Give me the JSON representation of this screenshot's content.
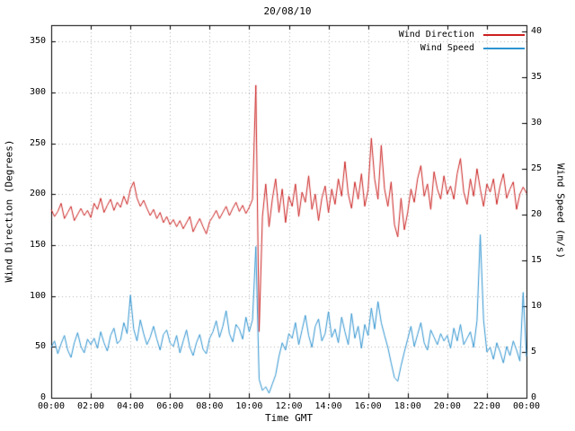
{
  "chart_data": {
    "type": "line",
    "title": "20/08/10",
    "xlabel": "Time GMT",
    "ylabel_left": "Wind Direction (Degrees)",
    "ylabel_right": "Wind Speed (m/s)",
    "grid": true,
    "legend_position": "top-right",
    "x_tick_labels": [
      "00:00",
      "02:00",
      "04:00",
      "06:00",
      "08:00",
      "10:00",
      "12:00",
      "14:00",
      "16:00",
      "18:00",
      "20:00",
      "22:00",
      "00:00"
    ],
    "x_range_minutes": [
      0,
      1440
    ],
    "y_left": {
      "range": [
        0,
        366
      ],
      "ticks": [
        0,
        50,
        100,
        150,
        200,
        250,
        300,
        350
      ]
    },
    "y_right": {
      "range": [
        0,
        40.67
      ],
      "ticks": [
        0,
        5,
        10,
        15,
        20,
        25,
        30,
        35,
        40
      ]
    },
    "colors": {
      "grid": "#b0b0b0",
      "border": "#000000"
    },
    "series": [
      {
        "name": "Wind Direction",
        "axis": "left",
        "units": "Degrees",
        "color": "#cc2020",
        "values": [
          185,
          178,
          183,
          191,
          176,
          182,
          188,
          174,
          180,
          186,
          179,
          184,
          177,
          191,
          185,
          196,
          182,
          189,
          195,
          184,
          192,
          187,
          198,
          190,
          205,
          212,
          196,
          188,
          194,
          186,
          179,
          185,
          176,
          182,
          172,
          178,
          170,
          175,
          168,
          174,
          166,
          172,
          178,
          163,
          170,
          176,
          168,
          161,
          173,
          178,
          184,
          176,
          182,
          188,
          179,
          186,
          192,
          183,
          189,
          181,
          187,
          195,
          307,
          65,
          178,
          210,
          168,
          195,
          215,
          182,
          205,
          172,
          198,
          188,
          210,
          178,
          202,
          192,
          218,
          185,
          200,
          174,
          196,
          208,
          182,
          205,
          190,
          215,
          198,
          232,
          200,
          186,
          212,
          195,
          220,
          188,
          204,
          255,
          215,
          195,
          248,
          205,
          188,
          212,
          170,
          158,
          196,
          165,
          182,
          205,
          192,
          215,
          228,
          198,
          210,
          185,
          222,
          205,
          195,
          218,
          200,
          208,
          195,
          220,
          235,
          202,
          190,
          215,
          198,
          225,
          205,
          188,
          210,
          202,
          215,
          190,
          208,
          220,
          196,
          205,
          212,
          185,
          200,
          207,
          201
        ]
      },
      {
        "name": "Wind Speed",
        "axis": "right",
        "units": "m/s",
        "color": "#2f94d1",
        "values": [
          5.5,
          6.2,
          4.8,
          5.9,
          6.8,
          5.2,
          4.4,
          6.0,
          7.1,
          5.6,
          4.9,
          6.4,
          5.8,
          6.5,
          5.4,
          7.2,
          6.0,
          5.1,
          6.8,
          7.6,
          5.9,
          6.3,
          8.2,
          7.0,
          11.2,
          7.5,
          6.2,
          8.5,
          7.0,
          5.8,
          6.6,
          7.8,
          6.4,
          5.2,
          6.9,
          7.4,
          6.0,
          5.6,
          6.8,
          4.9,
          6.2,
          7.4,
          5.5,
          4.6,
          6.0,
          6.9,
          5.3,
          4.8,
          6.5,
          7.2,
          8.4,
          6.6,
          7.8,
          9.5,
          7.0,
          6.1,
          8.0,
          7.5,
          6.4,
          8.8,
          7.2,
          8.5,
          16.5,
          2.0,
          0.8,
          1.2,
          0.5,
          1.5,
          2.5,
          4.5,
          6.0,
          5.2,
          7.0,
          6.5,
          8.2,
          5.8,
          7.4,
          9.0,
          6.8,
          5.5,
          7.8,
          8.6,
          6.2,
          7.0,
          9.4,
          6.6,
          7.5,
          6.0,
          8.8,
          7.2,
          5.8,
          9.2,
          6.5,
          7.8,
          5.4,
          8.0,
          6.8,
          9.8,
          7.5,
          10.5,
          8.2,
          6.8,
          5.5,
          3.8,
          2.2,
          1.8,
          3.5,
          5.0,
          6.4,
          7.8,
          5.6,
          6.9,
          8.2,
          6.0,
          5.2,
          7.4,
          6.6,
          5.8,
          7.0,
          6.2,
          6.8,
          5.4,
          7.6,
          6.2,
          8.0,
          5.8,
          6.5,
          7.2,
          5.5,
          8.4,
          17.8,
          8.5,
          5.0,
          5.5,
          4.2,
          6.0,
          5.0,
          3.8,
          5.6,
          4.6,
          6.2,
          5.2,
          4.0,
          11.5,
          4.5
        ]
      }
    ]
  }
}
